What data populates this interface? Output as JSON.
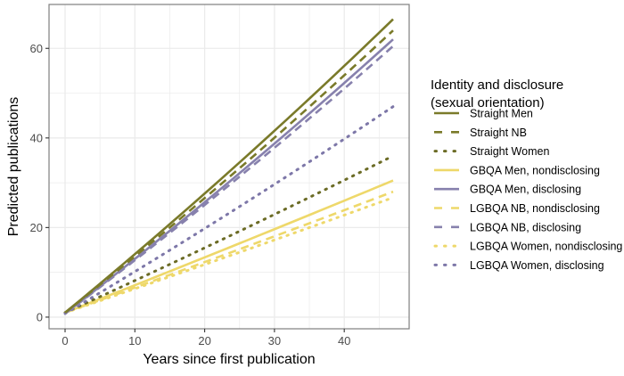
{
  "chart_data": {
    "type": "line",
    "title": "",
    "xlabel": "Years since first publication",
    "ylabel": "Predicted publications",
    "xlim": [
      -2.3,
      49.3
    ],
    "ylim": [
      -2.6,
      69.8
    ],
    "x_ticks": [
      0,
      10,
      20,
      30,
      40
    ],
    "y_ticks": [
      0,
      20,
      40,
      60
    ],
    "grid": true,
    "legend_position": "right",
    "legend_title": "Identity and disclosure\n(sexual orientation)",
    "legend_title_lines": [
      "Identity and disclosure",
      "(sexual orientation)"
    ],
    "x": [
      0,
      47
    ],
    "series": [
      {
        "name": "Straight Men",
        "color": "#7a7a2a",
        "linetype": "solid",
        "start": 1.0,
        "end": 66.5,
        "curvature": 0.08
      },
      {
        "name": "Straight NB",
        "color": "#7a7a2a",
        "linetype": "dashed",
        "start": 1.0,
        "end": 64.0,
        "curvature": 0.08
      },
      {
        "name": "Straight Women",
        "color": "#6b6b25",
        "linetype": "dotted",
        "start": 1.0,
        "end": 36.0,
        "curvature": 0.05
      },
      {
        "name": "GBQA Men, nondisclosing",
        "color": "#eed86a",
        "linetype": "solid",
        "start": 1.0,
        "end": 30.5,
        "curvature": 0.03
      },
      {
        "name": "GBQA Men, disclosing",
        "color": "#8781ad",
        "linetype": "solid",
        "start": 0.8,
        "end": 62.0,
        "curvature": 0.08
      },
      {
        "name": "LGBQA NB, nondisclosing",
        "color": "#eed86a",
        "linetype": "dashed",
        "start": 1.0,
        "end": 28.0,
        "curvature": 0.03
      },
      {
        "name": "LGBQA NB, disclosing",
        "color": "#8781ad",
        "linetype": "dashed",
        "start": 0.8,
        "end": 60.5,
        "curvature": 0.08
      },
      {
        "name": "LGBQA Women, nondisclosing",
        "color": "#eed86a",
        "linetype": "dotted",
        "start": 1.0,
        "end": 26.7,
        "curvature": 0.03
      },
      {
        "name": "LGBQA Women, disclosing",
        "color": "#7d77a8",
        "linetype": "dotted",
        "start": 0.8,
        "end": 47.0,
        "curvature": 0.06
      }
    ]
  }
}
